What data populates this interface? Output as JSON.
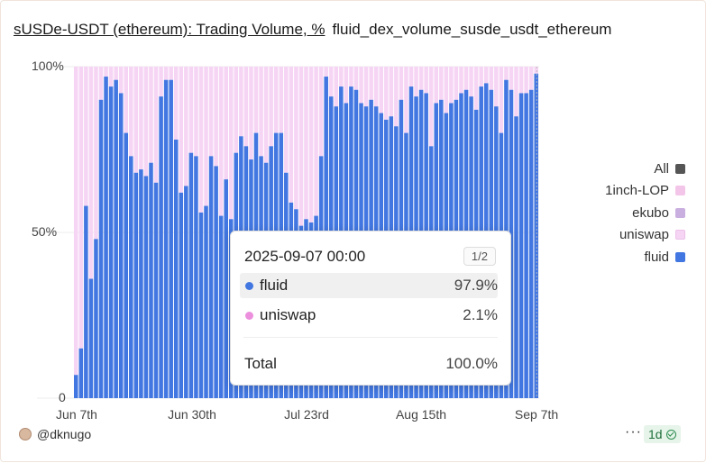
{
  "header": {
    "title": "sUSDe-USDT (ethereum): Trading Volume, %",
    "subtitle": "fluid_dex_volume_susde_usdt_ethereum"
  },
  "chart_data": {
    "type": "bar",
    "stacked": true,
    "normalized_percent": true,
    "title": "sUSDe-USDT (ethereum): Trading Volume, %",
    "y_ticks": [
      "100%",
      "50%",
      "0"
    ],
    "ylim": [
      0,
      100
    ],
    "x_ticks": [
      "Jun 7th",
      "Jun 30th",
      "Jul 23rd",
      "Aug 15th",
      "Sep 7th"
    ],
    "x_range": [
      "2025-06-07",
      "2025-09-07"
    ],
    "grid": true,
    "legend_position": "right",
    "series": [
      {
        "name": "fluid",
        "color": "#4277e1",
        "values": [
          7,
          15,
          58,
          36,
          48,
          90,
          97,
          94,
          96,
          92,
          80,
          73,
          68,
          69,
          67,
          71,
          65,
          91,
          96,
          96,
          78,
          62,
          64,
          74,
          73,
          56,
          58,
          73,
          70,
          55,
          66,
          54,
          74,
          79,
          76,
          72,
          80,
          73,
          71,
          76,
          80,
          80,
          68,
          59,
          57,
          52,
          54,
          53,
          55,
          73,
          97,
          91,
          88,
          94,
          89,
          94,
          93,
          89,
          88,
          90,
          88,
          86,
          84,
          85,
          82,
          90,
          80,
          94,
          91,
          93,
          92,
          76,
          89,
          90,
          86,
          89,
          90,
          92,
          93,
          91,
          87,
          94,
          95,
          93,
          88,
          80,
          96,
          93,
          85,
          92,
          92,
          93,
          97.9
        ]
      },
      {
        "name": "uniswap",
        "color": "#f6d5f4",
        "values": [
          93,
          85,
          42,
          64,
          52,
          10,
          3,
          6,
          4,
          8,
          20,
          27,
          32,
          31,
          33,
          29,
          35,
          9,
          4,
          4,
          22,
          38,
          36,
          26,
          27,
          44,
          42,
          27,
          30,
          45,
          34,
          46,
          26,
          21,
          24,
          28,
          20,
          27,
          29,
          24,
          20,
          20,
          32,
          41,
          43,
          48,
          46,
          47,
          45,
          27,
          3,
          9,
          12,
          6,
          11,
          6,
          7,
          11,
          12,
          10,
          12,
          14,
          16,
          15,
          18,
          10,
          20,
          6,
          9,
          7,
          8,
          24,
          11,
          10,
          14,
          11,
          10,
          8,
          7,
          9,
          13,
          6,
          5,
          7,
          12,
          20,
          4,
          7,
          15,
          8,
          8,
          7,
          2.1
        ]
      },
      {
        "name": "ekubo",
        "color": "#c9aee0",
        "values": []
      },
      {
        "name": "1inch-LOP",
        "color": "#f3c6e9",
        "values": []
      }
    ]
  },
  "legend": {
    "items": [
      {
        "label": "All",
        "color": "#555555"
      },
      {
        "label": "1inch-LOP",
        "color": "#f3c6e9"
      },
      {
        "label": "ekubo",
        "color": "#c9aee0"
      },
      {
        "label": "uniswap",
        "color": "#f6d5f4"
      },
      {
        "label": "fluid",
        "color": "#4277e1"
      }
    ]
  },
  "tooltip": {
    "date": "2025-09-07 00:00",
    "page": "1/2",
    "rows": [
      {
        "label": "fluid",
        "value": "97.9%",
        "color": "#4277e1"
      },
      {
        "label": "uniswap",
        "value": "2.1%",
        "color": "#ec8fdd"
      }
    ],
    "total_label": "Total",
    "total_value": "100.0%"
  },
  "footer": {
    "user": "@dknugo",
    "more": "···",
    "badge": "1d"
  }
}
